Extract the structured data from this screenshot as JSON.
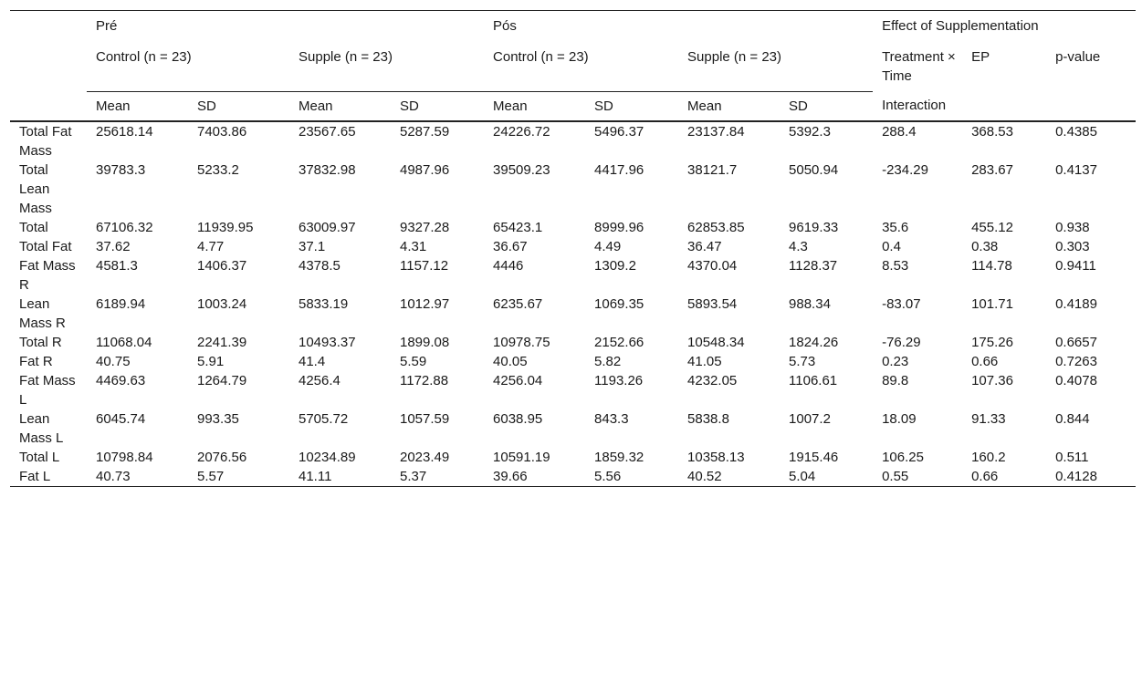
{
  "header": {
    "groups": [
      "Pré",
      "Pós",
      "Effect of Supplementation"
    ],
    "subgroups": [
      "Control (n = 23)",
      "Supple (n = 23)",
      "Control (n = 23)",
      "Supple (n = 23)"
    ],
    "effect_cols": [
      "Treatment × Time",
      "EP",
      "p-value"
    ],
    "stats": [
      "Mean",
      "SD",
      "Mean",
      "SD",
      "Mean",
      "SD",
      "Mean",
      "SD"
    ],
    "interaction": "Interaction"
  },
  "rows": [
    {
      "label": "Total Fat Mass",
      "cells": [
        "25618.14",
        "7403.86",
        "23567.65",
        "5287.59",
        "24226.72",
        "5496.37",
        "23137.84",
        "5392.3",
        "288.4",
        "368.53",
        "0.4385"
      ]
    },
    {
      "label": "Total Lean Mass",
      "cells": [
        "39783.3",
        "5233.2",
        "37832.98",
        "4987.96",
        "39509.23",
        "4417.96",
        "38121.7",
        "5050.94",
        "-234.29",
        "283.67",
        "0.4137"
      ]
    },
    {
      "label": "Total",
      "cells": [
        "67106.32",
        "11939.95",
        "63009.97",
        "9327.28",
        "65423.1",
        "8999.96",
        "62853.85",
        "9619.33",
        "35.6",
        "455.12",
        "0.938"
      ]
    },
    {
      "label": "Total Fat",
      "cells": [
        "37.62",
        "4.77",
        "37.1",
        "4.31",
        "36.67",
        "4.49",
        "36.47",
        "4.3",
        "0.4",
        "0.38",
        "0.303"
      ]
    },
    {
      "label": "Fat Mass R",
      "cells": [
        "4581.3",
        "1406.37",
        "4378.5",
        "1157.12",
        "4446",
        "1309.2",
        "4370.04",
        "1128.37",
        "8.53",
        "114.78",
        "0.9411"
      ]
    },
    {
      "label": "Lean Mass R",
      "cells": [
        "6189.94",
        "1003.24",
        "5833.19",
        "1012.97",
        "6235.67",
        "1069.35",
        "5893.54",
        "988.34",
        "-83.07",
        "101.71",
        "0.4189"
      ]
    },
    {
      "label": "Total R",
      "cells": [
        "11068.04",
        "2241.39",
        "10493.37",
        "1899.08",
        "10978.75",
        "2152.66",
        "10548.34",
        "1824.26",
        "-76.29",
        "175.26",
        "0.6657"
      ]
    },
    {
      "label": "Fat R",
      "cells": [
        "40.75",
        "5.91",
        "41.4",
        "5.59",
        "40.05",
        "5.82",
        "41.05",
        "5.73",
        "0.23",
        "0.66",
        "0.7263"
      ]
    },
    {
      "label": "Fat Mass L",
      "cells": [
        "4469.63",
        "1264.79",
        "4256.4",
        "1172.88",
        "4256.04",
        "1193.26",
        "4232.05",
        "1106.61",
        "89.8",
        "107.36",
        "0.4078"
      ]
    },
    {
      "label": "Lean Mass L",
      "cells": [
        "6045.74",
        "993.35",
        "5705.72",
        "1057.59",
        "6038.95",
        "843.3",
        "5838.8",
        "1007.2",
        "18.09",
        "91.33",
        "0.844"
      ]
    },
    {
      "label": "Total L",
      "cells": [
        "10798.84",
        "2076.56",
        "10234.89",
        "2023.49",
        "10591.19",
        "1859.32",
        "10358.13",
        "1915.46",
        "106.25",
        "160.2",
        "0.511"
      ]
    },
    {
      "label": "Fat L",
      "cells": [
        "40.73",
        "5.57",
        "41.11",
        "5.37",
        "39.66",
        "5.56",
        "40.52",
        "5.04",
        "0.55",
        "0.66",
        "0.4128"
      ]
    }
  ]
}
